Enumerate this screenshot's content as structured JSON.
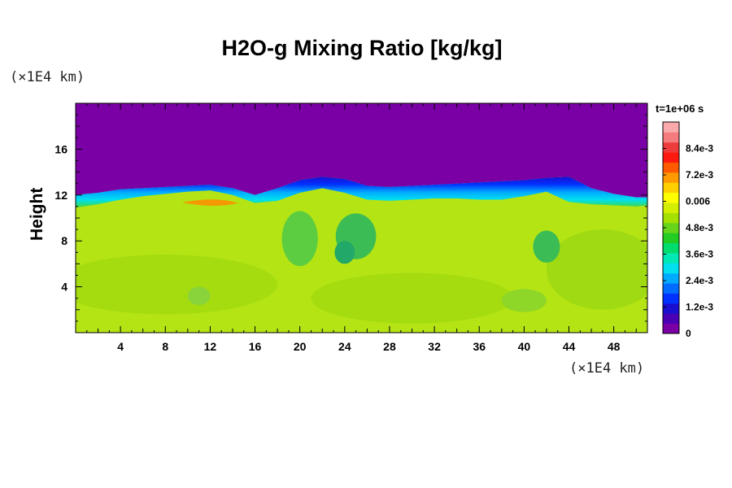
{
  "chart_data": {
    "type": "heatmap",
    "title": "H2O-g Mixing Ratio [kg/kg]",
    "xlabel": "",
    "ylabel": "Height",
    "x_unit": "(×1E4 km)",
    "y_unit": "(×1E4 km)",
    "time_label": "t=1e+06 s",
    "xlim": [
      0,
      51
    ],
    "ylim": [
      0,
      20
    ],
    "x_ticks": [
      4,
      8,
      12,
      16,
      20,
      24,
      28,
      32,
      36,
      40,
      44,
      48
    ],
    "y_ticks": [
      4,
      8,
      12,
      16
    ],
    "colorbar": {
      "range": [
        0,
        0.0096
      ],
      "labels": [
        {
          "value": 0,
          "text": "0"
        },
        {
          "value": 0.0012,
          "text": "1.2e-3"
        },
        {
          "value": 0.0024,
          "text": "2.4e-3"
        },
        {
          "value": 0.0036,
          "text": "3.6e-3"
        },
        {
          "value": 0.0048,
          "text": "4.8e-3"
        },
        {
          "value": 0.006,
          "text": "0.006"
        },
        {
          "value": 0.0072,
          "text": "7.2e-3"
        },
        {
          "value": 0.0084,
          "text": "8.4e-3"
        }
      ],
      "colors": [
        "#7a00a6",
        "#4a00b4",
        "#1a0ed0",
        "#0032ff",
        "#006cff",
        "#00aaff",
        "#00e0ee",
        "#00e8b4",
        "#00dc6e",
        "#22cc22",
        "#66d41a",
        "#a6e000",
        "#d4ee00",
        "#ffff00",
        "#ffd000",
        "#ff9a00",
        "#ff5a00",
        "#ff1a10",
        "#ee3b3b",
        "#f47c7c",
        "#faaaaa"
      ]
    },
    "profile": {
      "x": [
        0,
        2,
        4,
        6,
        8,
        10,
        12,
        14,
        16,
        18,
        20,
        22,
        24,
        26,
        28,
        30,
        32,
        34,
        36,
        38,
        40,
        42,
        44,
        46,
        48,
        50,
        51
      ],
      "top_moist_height": [
        10.9,
        11.2,
        11.6,
        11.9,
        12.1,
        12.3,
        12.4,
        12.0,
        11.3,
        11.5,
        12.2,
        12.6,
        12.2,
        11.6,
        11.5,
        11.6,
        11.7,
        11.7,
        11.6,
        11.6,
        11.9,
        12.3,
        11.4,
        11.2,
        11.1,
        11.0,
        11.1
      ],
      "dry_layer_top": [
        12.0,
        12.2,
        12.5,
        12.6,
        12.7,
        12.8,
        12.9,
        12.6,
        12.0,
        12.6,
        13.3,
        13.6,
        13.4,
        12.8,
        12.7,
        12.8,
        12.9,
        13.0,
        13.1,
        13.2,
        13.3,
        13.5,
        13.6,
        12.6,
        12.1,
        11.8,
        11.8
      ]
    }
  }
}
